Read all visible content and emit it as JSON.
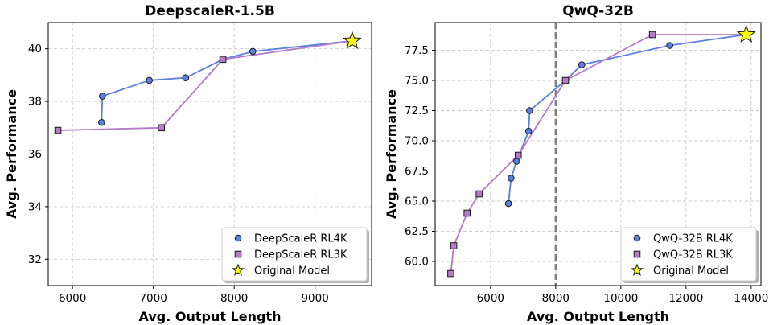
{
  "chart_data": [
    {
      "type": "line",
      "title": "DeepscaleR-1.5B",
      "xlabel": "Avg. Output Length",
      "ylabel": "Avg. Performance",
      "xlim": [
        5700,
        9700
      ],
      "ylim": [
        31,
        41
      ],
      "xticks": [
        6000,
        7000,
        8000,
        9000
      ],
      "yticks": [
        32,
        34,
        36,
        38,
        40
      ],
      "grid": true,
      "vline": null,
      "legend_position": "bottom-right",
      "series": [
        {
          "name": "DeepScaleR RL4K",
          "marker": "circle",
          "color": "#5b7fde",
          "points": [
            [
              6360,
              37.2
            ],
            [
              6370,
              38.2
            ],
            [
              6950,
              38.8
            ],
            [
              7400,
              38.9
            ],
            [
              7860,
              39.6
            ],
            [
              8230,
              39.9
            ],
            [
              9460,
              40.3
            ]
          ]
        },
        {
          "name": "DeepScaleR RL3K",
          "marker": "square",
          "color": "#b47cc7",
          "points": [
            [
              5820,
              36.9
            ],
            [
              7100,
              37.0
            ],
            [
              7860,
              39.6
            ],
            [
              9460,
              40.3
            ]
          ]
        },
        {
          "name": "Original Model",
          "marker": "star",
          "color": "#ffff00",
          "points": [
            [
              9460,
              40.3
            ]
          ]
        }
      ]
    },
    {
      "type": "line",
      "title": "QwQ-32B",
      "xlabel": "Avg. Output Length",
      "ylabel": "Avg. Performance",
      "xlim": [
        4300,
        14300
      ],
      "ylim": [
        58.0,
        79.8
      ],
      "xticks": [
        6000,
        8000,
        10000,
        12000,
        14000
      ],
      "yticks": [
        60.0,
        62.5,
        65.0,
        67.5,
        70.0,
        72.5,
        75.0,
        77.5
      ],
      "grid": true,
      "vline": 8000,
      "legend_position": "bottom-right",
      "series": [
        {
          "name": "QwQ-32B RL4K",
          "marker": "circle",
          "color": "#5b7fde",
          "points": [
            [
              6550,
              64.8
            ],
            [
              6630,
              66.9
            ],
            [
              6800,
              68.3
            ],
            [
              7170,
              70.8
            ],
            [
              7200,
              72.5
            ],
            [
              8300,
              75.0
            ],
            [
              8800,
              76.3
            ],
            [
              11500,
              77.9
            ],
            [
              13850,
              78.8
            ]
          ]
        },
        {
          "name": "QwQ-32B RL3K",
          "marker": "square",
          "color": "#b47cc7",
          "points": [
            [
              4780,
              59.0
            ],
            [
              4870,
              61.3
            ],
            [
              5280,
              64.0
            ],
            [
              5650,
              65.6
            ],
            [
              6850,
              68.8
            ],
            [
              8300,
              75.0
            ],
            [
              10970,
              78.8
            ],
            [
              13850,
              78.8
            ]
          ]
        },
        {
          "name": "Original Model",
          "marker": "star",
          "color": "#ffff00",
          "points": [
            [
              13850,
              78.8
            ]
          ]
        }
      ]
    }
  ]
}
